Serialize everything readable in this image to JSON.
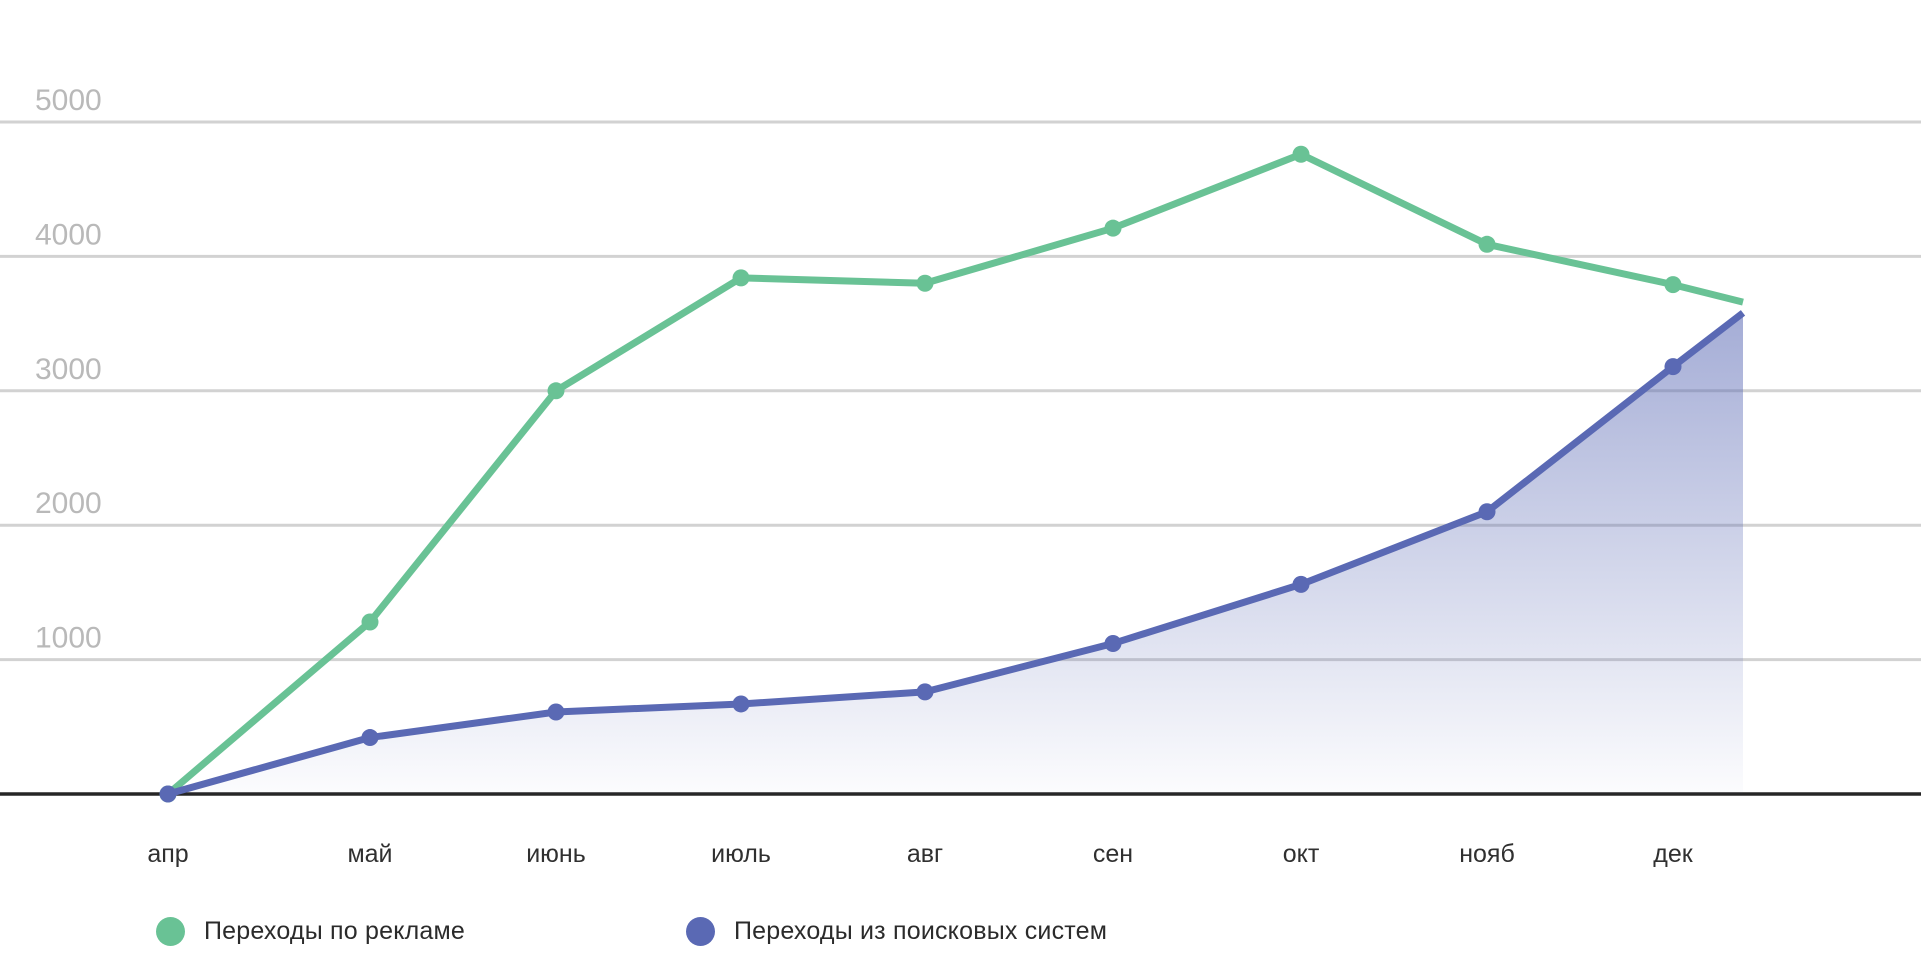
{
  "page": {
    "background": "#ffffff"
  },
  "chart_data": {
    "type": "line",
    "title": "",
    "categories": [
      "апр",
      "май",
      "июнь",
      "июль",
      "авг",
      "сен",
      "окт",
      "нояб",
      "дек"
    ],
    "series": [
      {
        "name": "Переходы по рекламе",
        "color": "#69c295",
        "values": [
          0,
          1280,
          3000,
          3840,
          3800,
          4210,
          4760,
          4090,
          3790
        ],
        "trailing_value": 3660,
        "area_fill": false,
        "markers": true
      },
      {
        "name": "Переходы из поисковых систем",
        "color": "#5a69b4",
        "values": [
          0,
          420,
          610,
          670,
          760,
          1120,
          1560,
          2100,
          3180
        ],
        "trailing_value": 3580,
        "area_fill": true,
        "markers": true
      }
    ],
    "yticks": [
      1000,
      2000,
      3000,
      4000,
      5000
    ],
    "ylim": [
      0,
      5000
    ],
    "grid": "horizontal",
    "legend_position": "bottom-left",
    "colors": {
      "gridline": "#d2d2d2",
      "axis_line": "#262626",
      "ytick_label": "#b9b9b9",
      "xtick_label": "#303030",
      "legend_text": "#2b2b2b",
      "area_gradient_top": "rgba(90,105,180,0.55)",
      "area_gradient_bottom": "rgba(90,105,180,0.02)"
    }
  }
}
